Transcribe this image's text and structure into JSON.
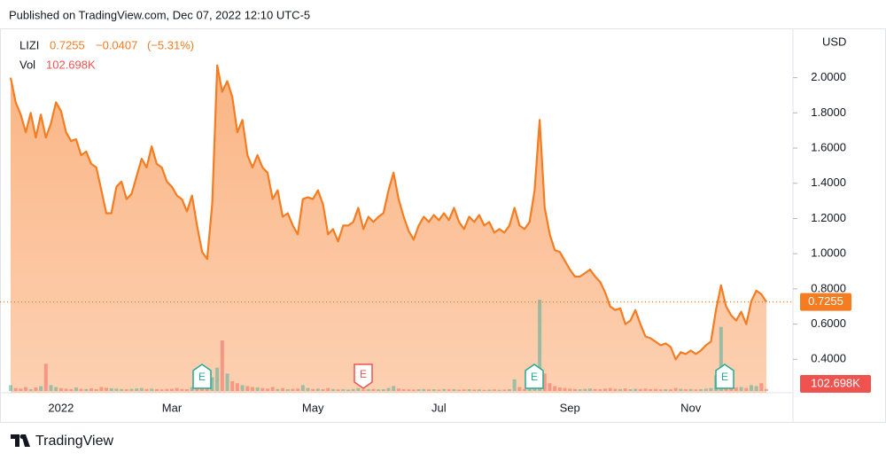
{
  "header": {
    "published": "Published on TradingView.com, Dec 07, 2022 12:10 UTC-5",
    "brand": "TradingView"
  },
  "chart_data": {
    "type": "area",
    "currency": "USD",
    "series": [
      {
        "name": "LIZI",
        "color": "#f57c20",
        "fill": "#fbb07e",
        "values": [
          2.0,
          1.86,
          1.79,
          1.69,
          1.8,
          1.66,
          1.79,
          1.66,
          1.74,
          1.86,
          1.81,
          1.69,
          1.64,
          1.65,
          1.56,
          1.58,
          1.51,
          1.49,
          1.36,
          1.23,
          1.23,
          1.38,
          1.41,
          1.31,
          1.34,
          1.44,
          1.54,
          1.49,
          1.61,
          1.51,
          1.49,
          1.41,
          1.38,
          1.33,
          1.31,
          1.24,
          1.33,
          1.16,
          1.01,
          0.97,
          1.28,
          2.07,
          1.92,
          1.98,
          1.89,
          1.69,
          1.76,
          1.56,
          1.49,
          1.56,
          1.49,
          1.46,
          1.31,
          1.36,
          1.21,
          1.23,
          1.16,
          1.11,
          1.31,
          1.32,
          1.31,
          1.36,
          1.28,
          1.11,
          1.14,
          1.07,
          1.16,
          1.16,
          1.18,
          1.26,
          1.14,
          1.21,
          1.18,
          1.21,
          1.23,
          1.36,
          1.46,
          1.31,
          1.21,
          1.13,
          1.08,
          1.16,
          1.21,
          1.18,
          1.22,
          1.19,
          1.23,
          1.19,
          1.26,
          1.18,
          1.14,
          1.21,
          1.18,
          1.22,
          1.16,
          1.18,
          1.12,
          1.14,
          1.12,
          1.16,
          1.26,
          1.16,
          1.14,
          1.18,
          1.36,
          1.76,
          1.26,
          1.11,
          1.02,
          1.01,
          0.96,
          0.91,
          0.87,
          0.87,
          0.89,
          0.91,
          0.87,
          0.84,
          0.78,
          0.7,
          0.68,
          0.69,
          0.6,
          0.62,
          0.68,
          0.6,
          0.53,
          0.52,
          0.5,
          0.48,
          0.49,
          0.47,
          0.4,
          0.44,
          0.43,
          0.45,
          0.43,
          0.45,
          0.48,
          0.5,
          0.68,
          0.82,
          0.7,
          0.65,
          0.62,
          0.67,
          0.6,
          0.73,
          0.79,
          0.77,
          0.7255
        ]
      }
    ],
    "change": {
      "value": -0.0407,
      "label": "−0.0407"
    },
    "change_percent": {
      "value": -5.31,
      "label": "(−5.31%)"
    },
    "volume": {
      "name": "Vol",
      "last_label": "102.698K",
      "up_color": "rgba(38,166,154,0.45)",
      "down_color": "rgba(239,83,80,0.45)",
      "values": [
        300000,
        150000,
        120000,
        200000,
        90000,
        180000,
        250000,
        1400000,
        300000,
        200000,
        150000,
        120000,
        90000,
        180000,
        110000,
        100000,
        130000,
        90000,
        200000,
        160000,
        140000,
        120000,
        100000,
        90000,
        110000,
        130000,
        150000,
        100000,
        120000,
        90000,
        80000,
        100000,
        110000,
        150000,
        100000,
        90000,
        200000,
        250000,
        400000,
        300000,
        700000,
        1200000,
        2600000,
        900000,
        500000,
        400000,
        300000,
        250000,
        200000,
        180000,
        150000,
        120000,
        200000,
        100000,
        150000,
        90000,
        110000,
        120000,
        300000,
        150000,
        100000,
        120000,
        90000,
        150000,
        100000,
        80000,
        90000,
        70000,
        100000,
        150000,
        80000,
        90000,
        100000,
        80000,
        90000,
        150000,
        250000,
        120000,
        90000,
        80000,
        70000,
        90000,
        100000,
        80000,
        90000,
        70000,
        100000,
        80000,
        90000,
        70000,
        80000,
        90000,
        70000,
        80000,
        60000,
        70000,
        80000,
        60000,
        70000,
        90000,
        600000,
        200000,
        100000,
        150000,
        800000,
        4700000,
        900000,
        400000,
        250000,
        180000,
        150000,
        120000,
        100000,
        90000,
        110000,
        130000,
        100000,
        90000,
        120000,
        150000,
        110000,
        100000,
        130000,
        90000,
        110000,
        100000,
        120000,
        90000,
        100000,
        80000,
        90000,
        80000,
        150000,
        110000,
        90000,
        100000,
        80000,
        90000,
        120000,
        150000,
        800000,
        3300000,
        500000,
        250000,
        180000,
        200000,
        150000,
        300000,
        250000,
        400000,
        102698
      ]
    },
    "categories": [
      null,
      null,
      null,
      null,
      null,
      null,
      null,
      null,
      null,
      null,
      "2022",
      null,
      null,
      null,
      null,
      null,
      null,
      null,
      null,
      null,
      null,
      null,
      null,
      null,
      null,
      null,
      null,
      null,
      null,
      null,
      null,
      null,
      "Mar",
      null,
      null,
      null,
      null,
      null,
      null,
      null,
      null,
      null,
      null,
      null,
      null,
      null,
      null,
      null,
      null,
      null,
      null,
      null,
      null,
      null,
      null,
      null,
      null,
      null,
      null,
      null,
      "May",
      null,
      null,
      null,
      null,
      null,
      null,
      null,
      null,
      null,
      null,
      null,
      null,
      null,
      null,
      null,
      null,
      null,
      null,
      null,
      null,
      null,
      null,
      null,
      null,
      "Jul",
      null,
      null,
      null,
      null,
      null,
      null,
      null,
      null,
      null,
      null,
      null,
      null,
      null,
      null,
      null,
      null,
      null,
      null,
      null,
      null,
      null,
      null,
      null,
      null,
      null,
      "Sep",
      null,
      null,
      null,
      null,
      null,
      null,
      null,
      null,
      null,
      null,
      null,
      null,
      null,
      null,
      null,
      null,
      null,
      null,
      null,
      null,
      null,
      null,
      null,
      "Nov",
      null,
      null,
      null,
      null,
      null,
      null,
      null,
      null,
      null,
      null,
      null,
      null,
      null,
      null,
      null
    ],
    "ylim": [
      0.21,
      2.25
    ],
    "yticks": [
      {
        "value": 0.4,
        "label": "0.4000"
      },
      {
        "value": 0.6,
        "label": "0.6000"
      },
      {
        "value": 0.8,
        "label": "0.8000"
      },
      {
        "value": 1.0,
        "label": "1.0000"
      },
      {
        "value": 1.2,
        "label": "1.2000"
      },
      {
        "value": 1.4,
        "label": "1.4000"
      },
      {
        "value": 1.6,
        "label": "1.6000"
      },
      {
        "value": 1.8,
        "label": "1.8000"
      },
      {
        "value": 2.0,
        "label": "2.0000"
      }
    ],
    "grid": false,
    "earnings_marker": "E"
  }
}
